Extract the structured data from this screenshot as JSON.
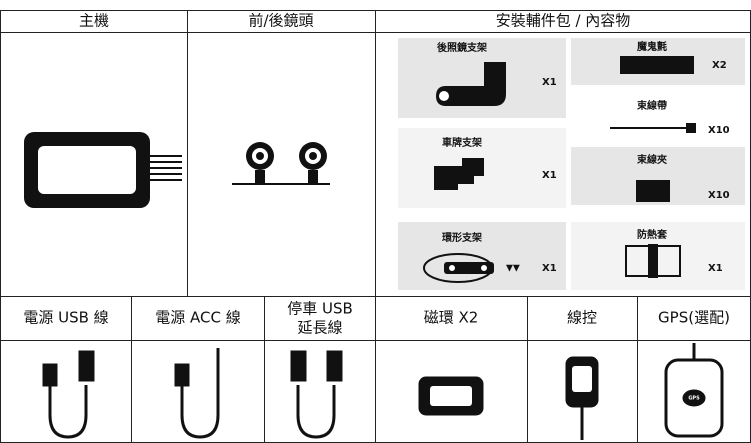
{
  "header": {
    "columns": [
      "主機",
      "前/後鏡頭",
      "安裝輔件包 / 內容物"
    ]
  },
  "accessories": [
    {
      "label": "後照鏡支架",
      "qty": "X1"
    },
    {
      "label": "車牌支架",
      "qty": "X1"
    },
    {
      "label": "環形支架",
      "qty": "X1"
    },
    {
      "label": "魔鬼氈",
      "qty": "X2"
    },
    {
      "label": "束線帶",
      "qty": "X10"
    },
    {
      "label": "束線夾",
      "qty": "X10"
    },
    {
      "label": "防熱套",
      "qty": "X1"
    }
  ],
  "parts": [
    {
      "lines": [
        "電源 USB 線"
      ]
    },
    {
      "lines": [
        "電源 ACC 線"
      ]
    },
    {
      "lines": [
        "停車 USB",
        "延長線"
      ]
    },
    {
      "lines": [
        "磁環 X2"
      ]
    },
    {
      "lines": [
        "線控"
      ]
    },
    {
      "lines": [
        "GPS(選配)"
      ]
    }
  ],
  "gps_icon_text": "GPS"
}
